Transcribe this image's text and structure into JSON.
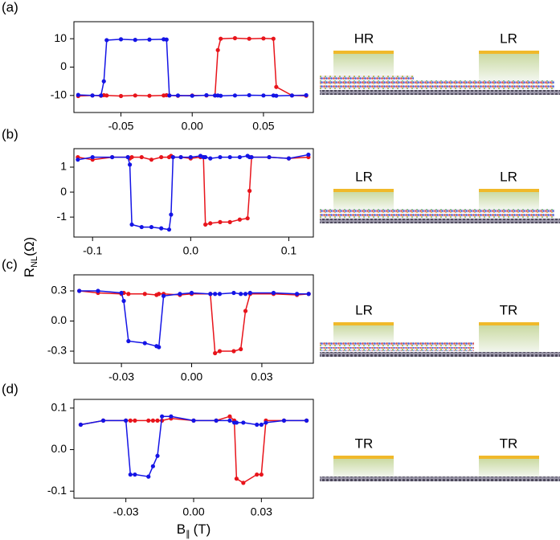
{
  "shared_labels": {
    "ylabel": {
      "main": "R",
      "sub": "NL",
      "unit": "(Ω)"
    },
    "xlabel": {
      "main": "B",
      "sub": "∥",
      "unit": "(T)"
    }
  },
  "chart_data": [
    {
      "type": "line",
      "label": "(a)",
      "schematic": {
        "left": "HR",
        "right": "LR"
      },
      "x": [
        -0.08,
        -0.07,
        -0.064,
        -0.062,
        -0.06,
        -0.05,
        -0.04,
        -0.03,
        -0.02,
        -0.018,
        -0.016,
        -0.01,
        0,
        0.01,
        0.016,
        0.018,
        0.02,
        0.03,
        0.04,
        0.05,
        0.057,
        0.059,
        0.07,
        0.08
      ],
      "series": [
        {
          "name": "red",
          "color": "#e8141b",
          "values": [
            -10.2,
            -10,
            -10.1,
            -9.9,
            -10,
            -10.2,
            -10,
            -10.1,
            -10,
            -9.9,
            -10,
            -10.1,
            -10,
            -10,
            -10,
            6,
            10,
            10.2,
            10,
            10.1,
            10,
            -7,
            -10,
            -10.1
          ]
        },
        {
          "name": "blue",
          "color": "#1414e6",
          "values": [
            -9.8,
            -10,
            -10,
            -5,
            9.5,
            9.8,
            9.6,
            9.7,
            9.8,
            9.7,
            -10,
            -10,
            -10.1,
            -9.9,
            -10,
            -10,
            -10.1,
            -10,
            -9.9,
            -10,
            -10,
            -10.1,
            -10,
            -9.9
          ]
        }
      ],
      "xlim": [
        -0.083,
        0.085
      ],
      "xticks": [
        -0.05,
        {
          "value": 0,
          "label": "0.00"
        },
        0.05
      ],
      "ylim": [
        -16,
        16
      ],
      "yticks": [
        10,
        0,
        -10
      ]
    },
    {
      "type": "line",
      "label": "(b)",
      "schematic": {
        "left": "LR",
        "right": "LR"
      },
      "x": [
        -0.115,
        -0.1,
        -0.08,
        -0.064,
        -0.062,
        -0.06,
        -0.05,
        -0.04,
        -0.03,
        -0.022,
        -0.02,
        -0.018,
        -0.01,
        0,
        0.01,
        0.013,
        0.015,
        0.02,
        0.03,
        0.04,
        0.05,
        0.058,
        0.06,
        0.062,
        0.08,
        0.1,
        0.12
      ],
      "series": [
        {
          "name": "red",
          "color": "#e8141b",
          "values": [
            1.4,
            1.3,
            1.4,
            1.4,
            1.35,
            1.4,
            1.4,
            1.3,
            1.4,
            1.4,
            1.45,
            1.4,
            1.4,
            1.35,
            1.4,
            1.4,
            -1.3,
            -1.25,
            -1.2,
            -1.2,
            -1.1,
            -1.05,
            0.05,
            1.4,
            1.4,
            1.35,
            1.4
          ]
        },
        {
          "name": "blue",
          "color": "#1414e6",
          "values": [
            1.3,
            1.4,
            1.4,
            1.4,
            1.1,
            -1.3,
            -1.4,
            -1.4,
            -1.45,
            -1.5,
            -0.9,
            1.4,
            1.4,
            1.4,
            1.45,
            1.4,
            1.4,
            1.35,
            1.4,
            1.4,
            1.4,
            1.45,
            1.4,
            1.4,
            1.4,
            1.35,
            1.5
          ]
        }
      ],
      "xlim": [
        -0.119,
        0.125
      ],
      "xticks": [
        -0.1,
        {
          "value": 0,
          "label": "0.0"
        },
        0.1
      ],
      "ylim": [
        -1.8,
        1.74
      ],
      "yticks": [
        1,
        0,
        -1
      ]
    },
    {
      "type": "line",
      "label": "(c)",
      "schematic": {
        "left": "LR",
        "right": "TR"
      },
      "x": [
        -0.048,
        -0.04,
        -0.03,
        -0.029,
        -0.027,
        -0.02,
        -0.015,
        -0.014,
        -0.012,
        -0.005,
        0,
        0.008,
        0.01,
        0.012,
        0.018,
        0.021,
        0.023,
        0.025,
        0.035,
        0.045,
        0.05
      ],
      "series": [
        {
          "name": "red",
          "color": "#e8141b",
          "values": [
            0.3,
            0.28,
            0.27,
            0.28,
            0.27,
            0.27,
            0.26,
            0.27,
            0.27,
            0.26,
            0.27,
            0.27,
            -0.32,
            -0.3,
            -0.3,
            -0.28,
            0.1,
            0.27,
            0.27,
            0.26,
            0.27
          ]
        },
        {
          "name": "blue",
          "color": "#1414e6",
          "values": [
            0.3,
            0.3,
            0.28,
            0.2,
            -0.2,
            -0.22,
            -0.25,
            -0.26,
            0.25,
            0.27,
            0.28,
            0.27,
            0.27,
            0.27,
            0.28,
            0.27,
            0.27,
            0.28,
            0.28,
            0.27,
            0.27
          ]
        }
      ],
      "xlim": [
        -0.0503,
        0.052
      ],
      "xticks": [
        -0.03,
        {
          "value": 0,
          "label": "0.00"
        },
        0.03
      ],
      "ylim": [
        -0.42,
        0.46
      ],
      "yticks": [
        0.3,
        {
          "value": 0,
          "label": "0.0"
        },
        -0.3
      ]
    },
    {
      "type": "line",
      "label": "(d)",
      "schematic": {
        "left": "TR",
        "right": "TR"
      },
      "x": [
        -0.05,
        -0.04,
        -0.03,
        -0.028,
        -0.026,
        -0.02,
        -0.018,
        -0.016,
        -0.014,
        -0.01,
        0,
        0.01,
        0.016,
        0.018,
        0.019,
        0.022,
        0.028,
        0.03,
        0.032,
        0.04,
        0.05
      ],
      "series": [
        {
          "name": "red",
          "color": "#e8141b",
          "values": [
            0.06,
            0.07,
            0.07,
            0.07,
            0.07,
            0.07,
            0.07,
            0.07,
            0.07,
            0.075,
            0.07,
            0.07,
            0.08,
            0.07,
            -0.07,
            -0.08,
            -0.06,
            -0.06,
            0.07,
            0.07,
            0.07
          ]
        },
        {
          "name": "blue",
          "color": "#1414e6",
          "values": [
            0.06,
            0.07,
            0.07,
            -0.06,
            -0.06,
            -0.065,
            -0.04,
            -0.015,
            0.08,
            0.08,
            0.07,
            0.07,
            0.07,
            0.065,
            0.065,
            0.065,
            0.06,
            0.06,
            0.065,
            0.07,
            0.07
          ]
        }
      ],
      "xlim": [
        -0.053,
        0.053
      ],
      "xticks": [
        -0.03,
        {
          "value": 0,
          "label": "0.00"
        },
        0.03
      ],
      "ylim": [
        -0.117,
        0.121
      ],
      "yticks": [
        0.1,
        {
          "value": 0,
          "label": "0.0"
        },
        -0.1
      ]
    }
  ]
}
